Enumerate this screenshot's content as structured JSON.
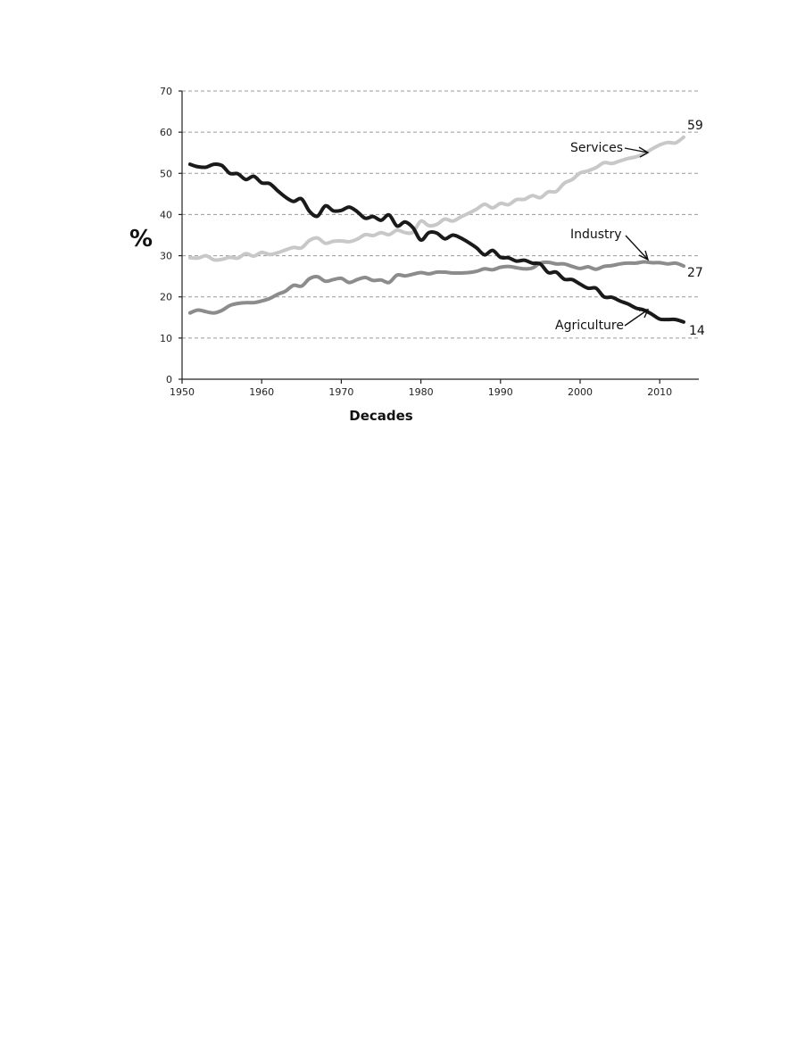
{
  "chart_data": {
    "type": "line",
    "xlabel": "Decades",
    "ylabel": "%",
    "xlim": [
      1950,
      2015
    ],
    "ylim": [
      0,
      70
    ],
    "x_ticks": [
      "1950",
      "1960",
      "1970",
      "1980",
      "1990",
      "2000",
      "2010"
    ],
    "y_ticks": [
      "0",
      "10",
      "20",
      "30",
      "40",
      "50",
      "60",
      "70"
    ],
    "grid": "horizontal dashed",
    "series": [
      {
        "name": "Agriculture",
        "color": "#1a1a1a",
        "end_label": "14",
        "points": [
          [
            1951,
            52.2
          ],
          [
            1952,
            51.6
          ],
          [
            1953,
            51.5
          ],
          [
            1954,
            52.2
          ],
          [
            1955,
            51.9
          ],
          [
            1956,
            50.0
          ],
          [
            1957,
            49.9
          ],
          [
            1958,
            48.5
          ],
          [
            1959,
            49.3
          ],
          [
            1960,
            47.7
          ],
          [
            1961,
            47.5
          ],
          [
            1962,
            45.8
          ],
          [
            1963,
            44.2
          ],
          [
            1964,
            43.2
          ],
          [
            1965,
            43.8
          ],
          [
            1966,
            40.8
          ],
          [
            1967,
            39.6
          ],
          [
            1968,
            42.1
          ],
          [
            1969,
            40.9
          ],
          [
            1970,
            41.0
          ],
          [
            1971,
            41.8
          ],
          [
            1972,
            40.7
          ],
          [
            1973,
            39.1
          ],
          [
            1974,
            39.5
          ],
          [
            1975,
            38.6
          ],
          [
            1976,
            39.9
          ],
          [
            1977,
            37.2
          ],
          [
            1978,
            38.2
          ],
          [
            1979,
            36.8
          ],
          [
            1980,
            33.8
          ],
          [
            1981,
            35.6
          ],
          [
            1982,
            35.5
          ],
          [
            1983,
            34.1
          ],
          [
            1984,
            35.0
          ],
          [
            1985,
            34.3
          ],
          [
            1986,
            33.2
          ],
          [
            1987,
            31.9
          ],
          [
            1988,
            30.2
          ],
          [
            1989,
            31.3
          ],
          [
            1990,
            29.6
          ],
          [
            1991,
            29.5
          ],
          [
            1992,
            28.7
          ],
          [
            1993,
            28.9
          ],
          [
            1994,
            28.2
          ],
          [
            1995,
            28.0
          ],
          [
            1996,
            25.9
          ],
          [
            1997,
            26.0
          ],
          [
            1998,
            24.3
          ],
          [
            1999,
            24.2
          ],
          [
            2000,
            23.1
          ],
          [
            2001,
            22.1
          ],
          [
            2002,
            22.1
          ],
          [
            2003,
            20.0
          ],
          [
            2004,
            19.9
          ],
          [
            2005,
            19.0
          ],
          [
            2006,
            18.3
          ],
          [
            2007,
            17.3
          ],
          [
            2008,
            16.8
          ],
          [
            2009,
            15.8
          ],
          [
            2010,
            14.6
          ],
          [
            2011,
            14.5
          ],
          [
            2012,
            14.5
          ],
          [
            2013,
            13.9
          ]
        ]
      },
      {
        "name": "Industry",
        "color": "#8c8c8c",
        "end_label": "27",
        "points": [
          [
            1951,
            16.1
          ],
          [
            1952,
            16.8
          ],
          [
            1953,
            16.4
          ],
          [
            1954,
            16.1
          ],
          [
            1955,
            16.7
          ],
          [
            1956,
            17.9
          ],
          [
            1957,
            18.4
          ],
          [
            1958,
            18.6
          ],
          [
            1959,
            18.6
          ],
          [
            1960,
            19.0
          ],
          [
            1961,
            19.6
          ],
          [
            1962,
            20.6
          ],
          [
            1963,
            21.4
          ],
          [
            1964,
            22.8
          ],
          [
            1965,
            22.6
          ],
          [
            1966,
            24.4
          ],
          [
            1967,
            24.9
          ],
          [
            1968,
            23.8
          ],
          [
            1969,
            24.2
          ],
          [
            1970,
            24.5
          ],
          [
            1971,
            23.5
          ],
          [
            1972,
            24.2
          ],
          [
            1973,
            24.7
          ],
          [
            1974,
            24.0
          ],
          [
            1975,
            24.1
          ],
          [
            1976,
            23.5
          ],
          [
            1977,
            25.3
          ],
          [
            1978,
            25.1
          ],
          [
            1979,
            25.5
          ],
          [
            1980,
            25.9
          ],
          [
            1981,
            25.6
          ],
          [
            1982,
            26.0
          ],
          [
            1983,
            26.0
          ],
          [
            1984,
            25.8
          ],
          [
            1985,
            25.8
          ],
          [
            1986,
            25.9
          ],
          [
            1987,
            26.2
          ],
          [
            1988,
            26.8
          ],
          [
            1989,
            26.6
          ],
          [
            1990,
            27.2
          ],
          [
            1991,
            27.4
          ],
          [
            1992,
            27.1
          ],
          [
            1993,
            26.8
          ],
          [
            1994,
            27.0
          ],
          [
            1995,
            28.2
          ],
          [
            1996,
            28.4
          ],
          [
            1997,
            28.0
          ],
          [
            1998,
            28.0
          ],
          [
            1999,
            27.4
          ],
          [
            2000,
            26.9
          ],
          [
            2001,
            27.3
          ],
          [
            2002,
            26.7
          ],
          [
            2003,
            27.4
          ],
          [
            2004,
            27.6
          ],
          [
            2005,
            28.0
          ],
          [
            2006,
            28.2
          ],
          [
            2007,
            28.2
          ],
          [
            2008,
            28.5
          ],
          [
            2009,
            28.3
          ],
          [
            2010,
            28.3
          ],
          [
            2011,
            28.0
          ],
          [
            2012,
            28.2
          ],
          [
            2013,
            27.5
          ]
        ]
      },
      {
        "name": "Services",
        "color": "#c8c8c8",
        "end_label": "59",
        "points": [
          [
            1951,
            29.5
          ],
          [
            1952,
            29.4
          ],
          [
            1953,
            30.0
          ],
          [
            1954,
            29.0
          ],
          [
            1955,
            29.1
          ],
          [
            1956,
            29.6
          ],
          [
            1957,
            29.4
          ],
          [
            1958,
            30.5
          ],
          [
            1959,
            29.9
          ],
          [
            1960,
            30.8
          ],
          [
            1961,
            30.3
          ],
          [
            1962,
            30.7
          ],
          [
            1963,
            31.4
          ],
          [
            1964,
            32.0
          ],
          [
            1965,
            31.9
          ],
          [
            1966,
            33.7
          ],
          [
            1967,
            34.3
          ],
          [
            1968,
            33.0
          ],
          [
            1969,
            33.5
          ],
          [
            1970,
            33.6
          ],
          [
            1971,
            33.4
          ],
          [
            1972,
            34.0
          ],
          [
            1973,
            35.1
          ],
          [
            1974,
            34.9
          ],
          [
            1975,
            35.6
          ],
          [
            1976,
            35.1
          ],
          [
            1977,
            36.2
          ],
          [
            1978,
            35.6
          ],
          [
            1979,
            35.7
          ],
          [
            1980,
            38.4
          ],
          [
            1981,
            37.3
          ],
          [
            1982,
            37.6
          ],
          [
            1983,
            38.9
          ],
          [
            1984,
            38.4
          ],
          [
            1985,
            39.4
          ],
          [
            1986,
            40.3
          ],
          [
            1987,
            41.3
          ],
          [
            1988,
            42.5
          ],
          [
            1989,
            41.6
          ],
          [
            1990,
            42.7
          ],
          [
            1991,
            42.4
          ],
          [
            1992,
            43.6
          ],
          [
            1993,
            43.7
          ],
          [
            1994,
            44.6
          ],
          [
            1995,
            44.1
          ],
          [
            1996,
            45.5
          ],
          [
            1997,
            45.6
          ],
          [
            1998,
            47.6
          ],
          [
            1999,
            48.5
          ],
          [
            2000,
            50.1
          ],
          [
            2001,
            50.6
          ],
          [
            2002,
            51.4
          ],
          [
            2003,
            52.6
          ],
          [
            2004,
            52.4
          ],
          [
            2005,
            53.0
          ],
          [
            2006,
            53.6
          ],
          [
            2007,
            54.0
          ],
          [
            2008,
            54.7
          ],
          [
            2009,
            55.9
          ],
          [
            2010,
            56.9
          ],
          [
            2011,
            57.5
          ],
          [
            2012,
            57.4
          ],
          [
            2013,
            58.8
          ]
        ]
      }
    ]
  }
}
